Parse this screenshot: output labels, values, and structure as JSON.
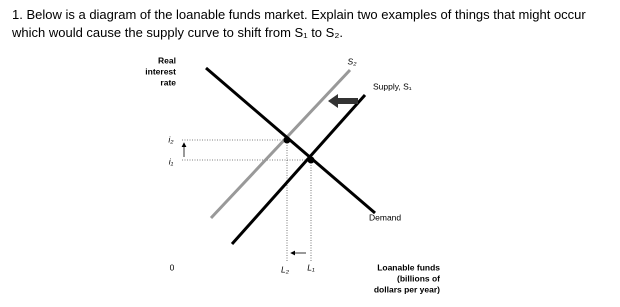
{
  "question": {
    "text_line_1": "1. Below is a diagram of the loanable funds market. Explain two examples of things that might occur",
    "text_line_2": "which would cause the supply curve to shift from S₁ to S₂."
  },
  "diagram": {
    "y_axis_label": [
      "Real",
      "interest",
      "rate"
    ],
    "i2": "i₂",
    "i1": "i₁",
    "origin": "0",
    "L2": "L₂",
    "L1": "L₁",
    "s2_label": "S₂",
    "s1_label": "Supply, S₁",
    "demand_label": "Demand",
    "x_axis_label": [
      "Loanable funds",
      "(billions of",
      "dollars per year)"
    ]
  }
}
